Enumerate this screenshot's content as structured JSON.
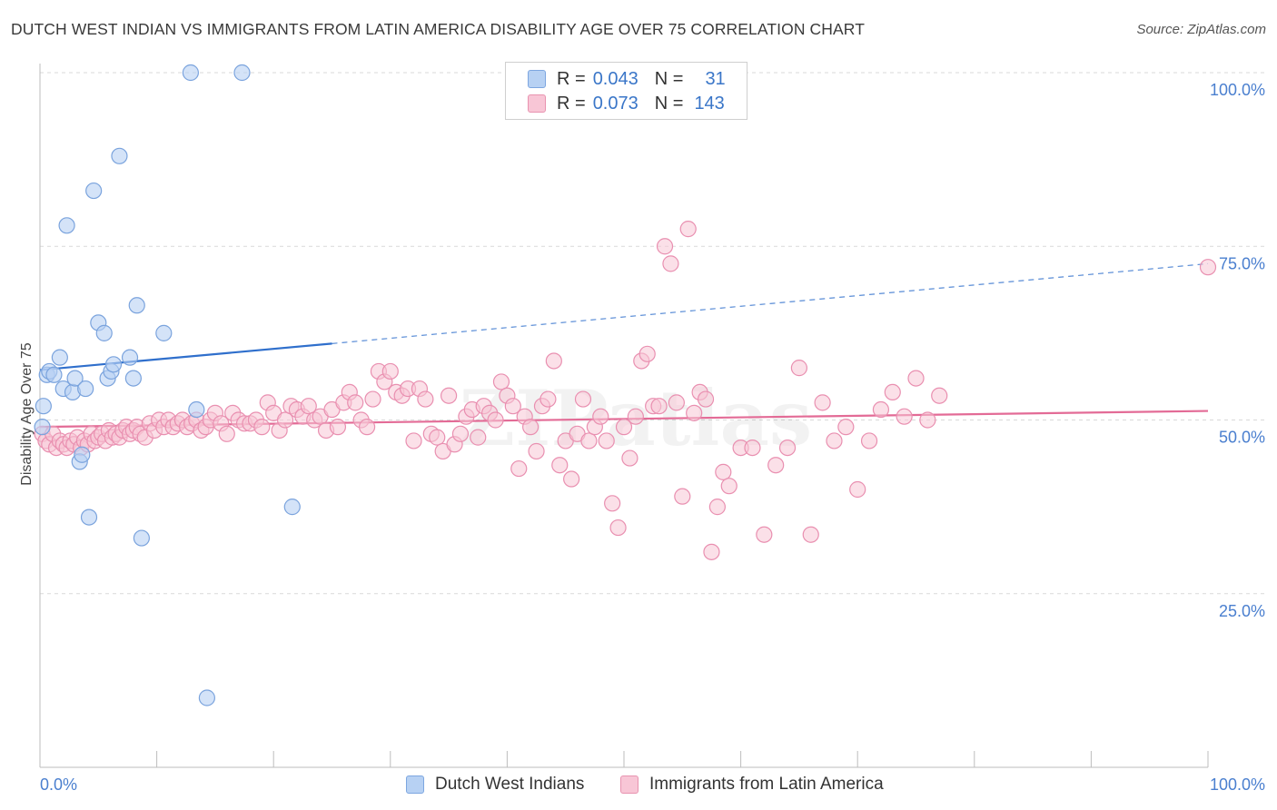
{
  "title": "DUTCH WEST INDIAN VS IMMIGRANTS FROM LATIN AMERICA DISABILITY AGE OVER 75 CORRELATION CHART",
  "source": "Source: ZipAtlas.com",
  "watermark": "ZIPatlas",
  "legend": {
    "r_label": "R =",
    "n_label": "N =",
    "blue": {
      "r": "0.043",
      "n": "31"
    },
    "pink": {
      "r": "0.073",
      "n": "143"
    }
  },
  "bottom_legend": {
    "blue": "Dutch West Indians",
    "pink": "Immigrants from Latin America"
  },
  "colors": {
    "blue_fill": "#b7d1f3",
    "blue_stroke": "#7aa3dd",
    "blue_line": "#2f6fcc",
    "pink_fill": "#f8c6d6",
    "pink_stroke": "#e98fb0",
    "pink_line": "#e36b96",
    "tick_text": "#4a7fcf",
    "grid": "#d9d9d9"
  },
  "chart_data": {
    "type": "scatter",
    "title": "DUTCH WEST INDIAN VS IMMIGRANTS FROM LATIN AMERICA DISABILITY AGE OVER 75 CORRELATION CHART",
    "xlabel": "",
    "ylabel": "Disability Age Over 75",
    "xlim": [
      0,
      100
    ],
    "ylim": [
      0,
      104
    ],
    "x_ticks": [
      "0.0%",
      "100.0%"
    ],
    "y_ticks": [
      {
        "value": 100,
        "label": "100.0%"
      },
      {
        "value": 75,
        "label": "75.0%"
      },
      {
        "value": 50,
        "label": "50.0%"
      },
      {
        "value": 25,
        "label": "25.0%"
      }
    ],
    "grid": true,
    "legend_position": "top-center",
    "series": [
      {
        "name": "Dutch West Indians",
        "color": "#b7d1f3",
        "r": 0.043,
        "n": 31,
        "trend": {
          "x0": 0,
          "y0": 57.2,
          "x1": 25,
          "y1": 61.0,
          "dashed_to_x": 100,
          "dashed_to_y": 72.5
        },
        "points": [
          [
            0.2,
            49
          ],
          [
            0.3,
            52
          ],
          [
            0.6,
            56.5
          ],
          [
            0.8,
            57
          ],
          [
            1.2,
            56.5
          ],
          [
            1.7,
            59
          ],
          [
            2.0,
            54.5
          ],
          [
            2.3,
            78
          ],
          [
            2.8,
            54
          ],
          [
            3.0,
            56
          ],
          [
            3.4,
            44
          ],
          [
            3.6,
            45
          ],
          [
            3.9,
            54.5
          ],
          [
            4.2,
            36
          ],
          [
            4.6,
            83
          ],
          [
            5.0,
            64
          ],
          [
            5.5,
            62.5
          ],
          [
            5.8,
            56
          ],
          [
            6.1,
            57
          ],
          [
            6.3,
            58
          ],
          [
            6.8,
            88
          ],
          [
            7.7,
            59
          ],
          [
            8.0,
            56
          ],
          [
            8.3,
            66.5
          ],
          [
            8.7,
            33
          ],
          [
            10.6,
            62.5
          ],
          [
            12.9,
            100
          ],
          [
            13.4,
            51.5
          ],
          [
            14.3,
            10
          ],
          [
            17.3,
            100
          ],
          [
            21.6,
            37.5
          ]
        ]
      },
      {
        "name": "Immigrants from Latin America",
        "color": "#f8c6d6",
        "r": 0.073,
        "n": 143,
        "trend": {
          "x0": 0,
          "y0": 49.0,
          "x1": 100,
          "y1": 51.3
        },
        "points": [
          [
            0.2,
            48
          ],
          [
            0.5,
            47
          ],
          [
            0.8,
            46.5
          ],
          [
            1.1,
            48
          ],
          [
            1.4,
            46
          ],
          [
            1.7,
            47
          ],
          [
            2.0,
            46.5
          ],
          [
            2.3,
            46
          ],
          [
            2.6,
            47
          ],
          [
            2.9,
            46.5
          ],
          [
            3.2,
            47.5
          ],
          [
            3.5,
            46
          ],
          [
            3.8,
            47
          ],
          [
            4.1,
            46.5
          ],
          [
            4.4,
            48
          ],
          [
            4.7,
            47
          ],
          [
            5.0,
            47.5
          ],
          [
            5.3,
            48
          ],
          [
            5.6,
            47
          ],
          [
            5.9,
            48.5
          ],
          [
            6.2,
            47.5
          ],
          [
            6.5,
            48
          ],
          [
            6.8,
            47.5
          ],
          [
            7.1,
            48.5
          ],
          [
            7.4,
            49
          ],
          [
            7.7,
            48
          ],
          [
            8.0,
            48.5
          ],
          [
            8.3,
            49
          ],
          [
            8.6,
            48
          ],
          [
            9.0,
            47.5
          ],
          [
            9.4,
            49.5
          ],
          [
            9.8,
            48.5
          ],
          [
            10.2,
            50
          ],
          [
            10.6,
            49
          ],
          [
            11.0,
            50
          ],
          [
            11.4,
            49
          ],
          [
            11.8,
            49.5
          ],
          [
            12.2,
            50
          ],
          [
            12.6,
            49
          ],
          [
            13.0,
            49.5
          ],
          [
            13.4,
            50
          ],
          [
            13.8,
            48.5
          ],
          [
            14.2,
            49
          ],
          [
            14.6,
            50
          ],
          [
            15.0,
            51
          ],
          [
            15.5,
            49.5
          ],
          [
            16.0,
            48
          ],
          [
            16.5,
            51
          ],
          [
            17.0,
            50
          ],
          [
            17.5,
            49.5
          ],
          [
            18.0,
            49.5
          ],
          [
            18.5,
            50
          ],
          [
            19.0,
            49
          ],
          [
            19.5,
            52.5
          ],
          [
            20.0,
            51
          ],
          [
            20.5,
            48.5
          ],
          [
            21.0,
            50
          ],
          [
            21.5,
            52
          ],
          [
            22.0,
            51.5
          ],
          [
            22.5,
            50.5
          ],
          [
            23.0,
            52
          ],
          [
            23.5,
            50
          ],
          [
            24.0,
            50.5
          ],
          [
            24.5,
            48.5
          ],
          [
            25.0,
            51.5
          ],
          [
            25.5,
            49
          ],
          [
            26.0,
            52.5
          ],
          [
            26.5,
            54
          ],
          [
            27.0,
            52.5
          ],
          [
            27.5,
            50
          ],
          [
            28.0,
            49
          ],
          [
            28.5,
            53
          ],
          [
            29.0,
            57
          ],
          [
            29.5,
            55.5
          ],
          [
            30.0,
            57
          ],
          [
            30.5,
            54
          ],
          [
            31.0,
            53.5
          ],
          [
            31.5,
            54.5
          ],
          [
            32.0,
            47
          ],
          [
            32.5,
            54.5
          ],
          [
            33.0,
            53
          ],
          [
            33.5,
            48
          ],
          [
            34.0,
            47.5
          ],
          [
            34.5,
            45.5
          ],
          [
            35.0,
            53.5
          ],
          [
            35.5,
            46.5
          ],
          [
            36.0,
            48
          ],
          [
            36.5,
            50.5
          ],
          [
            37.0,
            51.5
          ],
          [
            37.5,
            47.5
          ],
          [
            38.0,
            52
          ],
          [
            38.5,
            51
          ],
          [
            39.0,
            50
          ],
          [
            39.5,
            55.5
          ],
          [
            40.0,
            53.5
          ],
          [
            40.5,
            52
          ],
          [
            41.0,
            43
          ],
          [
            41.5,
            50.5
          ],
          [
            42.0,
            49
          ],
          [
            42.5,
            45.5
          ],
          [
            43.0,
            52
          ],
          [
            43.5,
            53
          ],
          [
            44.0,
            58.5
          ],
          [
            44.5,
            43.5
          ],
          [
            45.0,
            47
          ],
          [
            45.5,
            41.5
          ],
          [
            46.0,
            48
          ],
          [
            46.5,
            53
          ],
          [
            47.0,
            47
          ],
          [
            47.5,
            49
          ],
          [
            48.0,
            50.5
          ],
          [
            48.5,
            47
          ],
          [
            49.0,
            38
          ],
          [
            49.5,
            34.5
          ],
          [
            50.0,
            49
          ],
          [
            50.5,
            44.5
          ],
          [
            51.0,
            50.5
          ],
          [
            51.5,
            58.5
          ],
          [
            52.0,
            59.5
          ],
          [
            52.5,
            52
          ],
          [
            53.0,
            52
          ],
          [
            53.5,
            75
          ],
          [
            54.0,
            72.5
          ],
          [
            54.5,
            52.5
          ],
          [
            55.0,
            39
          ],
          [
            55.5,
            77.5
          ],
          [
            56.0,
            51
          ],
          [
            56.5,
            54
          ],
          [
            57.0,
            53
          ],
          [
            57.5,
            31
          ],
          [
            58.0,
            37.5
          ],
          [
            58.5,
            42.5
          ],
          [
            59.0,
            40.5
          ],
          [
            60.0,
            46
          ],
          [
            61.0,
            46
          ],
          [
            62.0,
            33.5
          ],
          [
            63.0,
            43.5
          ],
          [
            64.0,
            46
          ],
          [
            65.0,
            57.5
          ],
          [
            66.0,
            33.5
          ],
          [
            67.0,
            52.5
          ],
          [
            68.0,
            47
          ],
          [
            69.0,
            49
          ],
          [
            70.0,
            40
          ],
          [
            71.0,
            47
          ],
          [
            72.0,
            51.5
          ],
          [
            73.0,
            54
          ],
          [
            74.0,
            50.5
          ],
          [
            75.0,
            56
          ],
          [
            76.0,
            50
          ],
          [
            77.0,
            53.5
          ],
          [
            100.0,
            72
          ]
        ]
      }
    ]
  }
}
